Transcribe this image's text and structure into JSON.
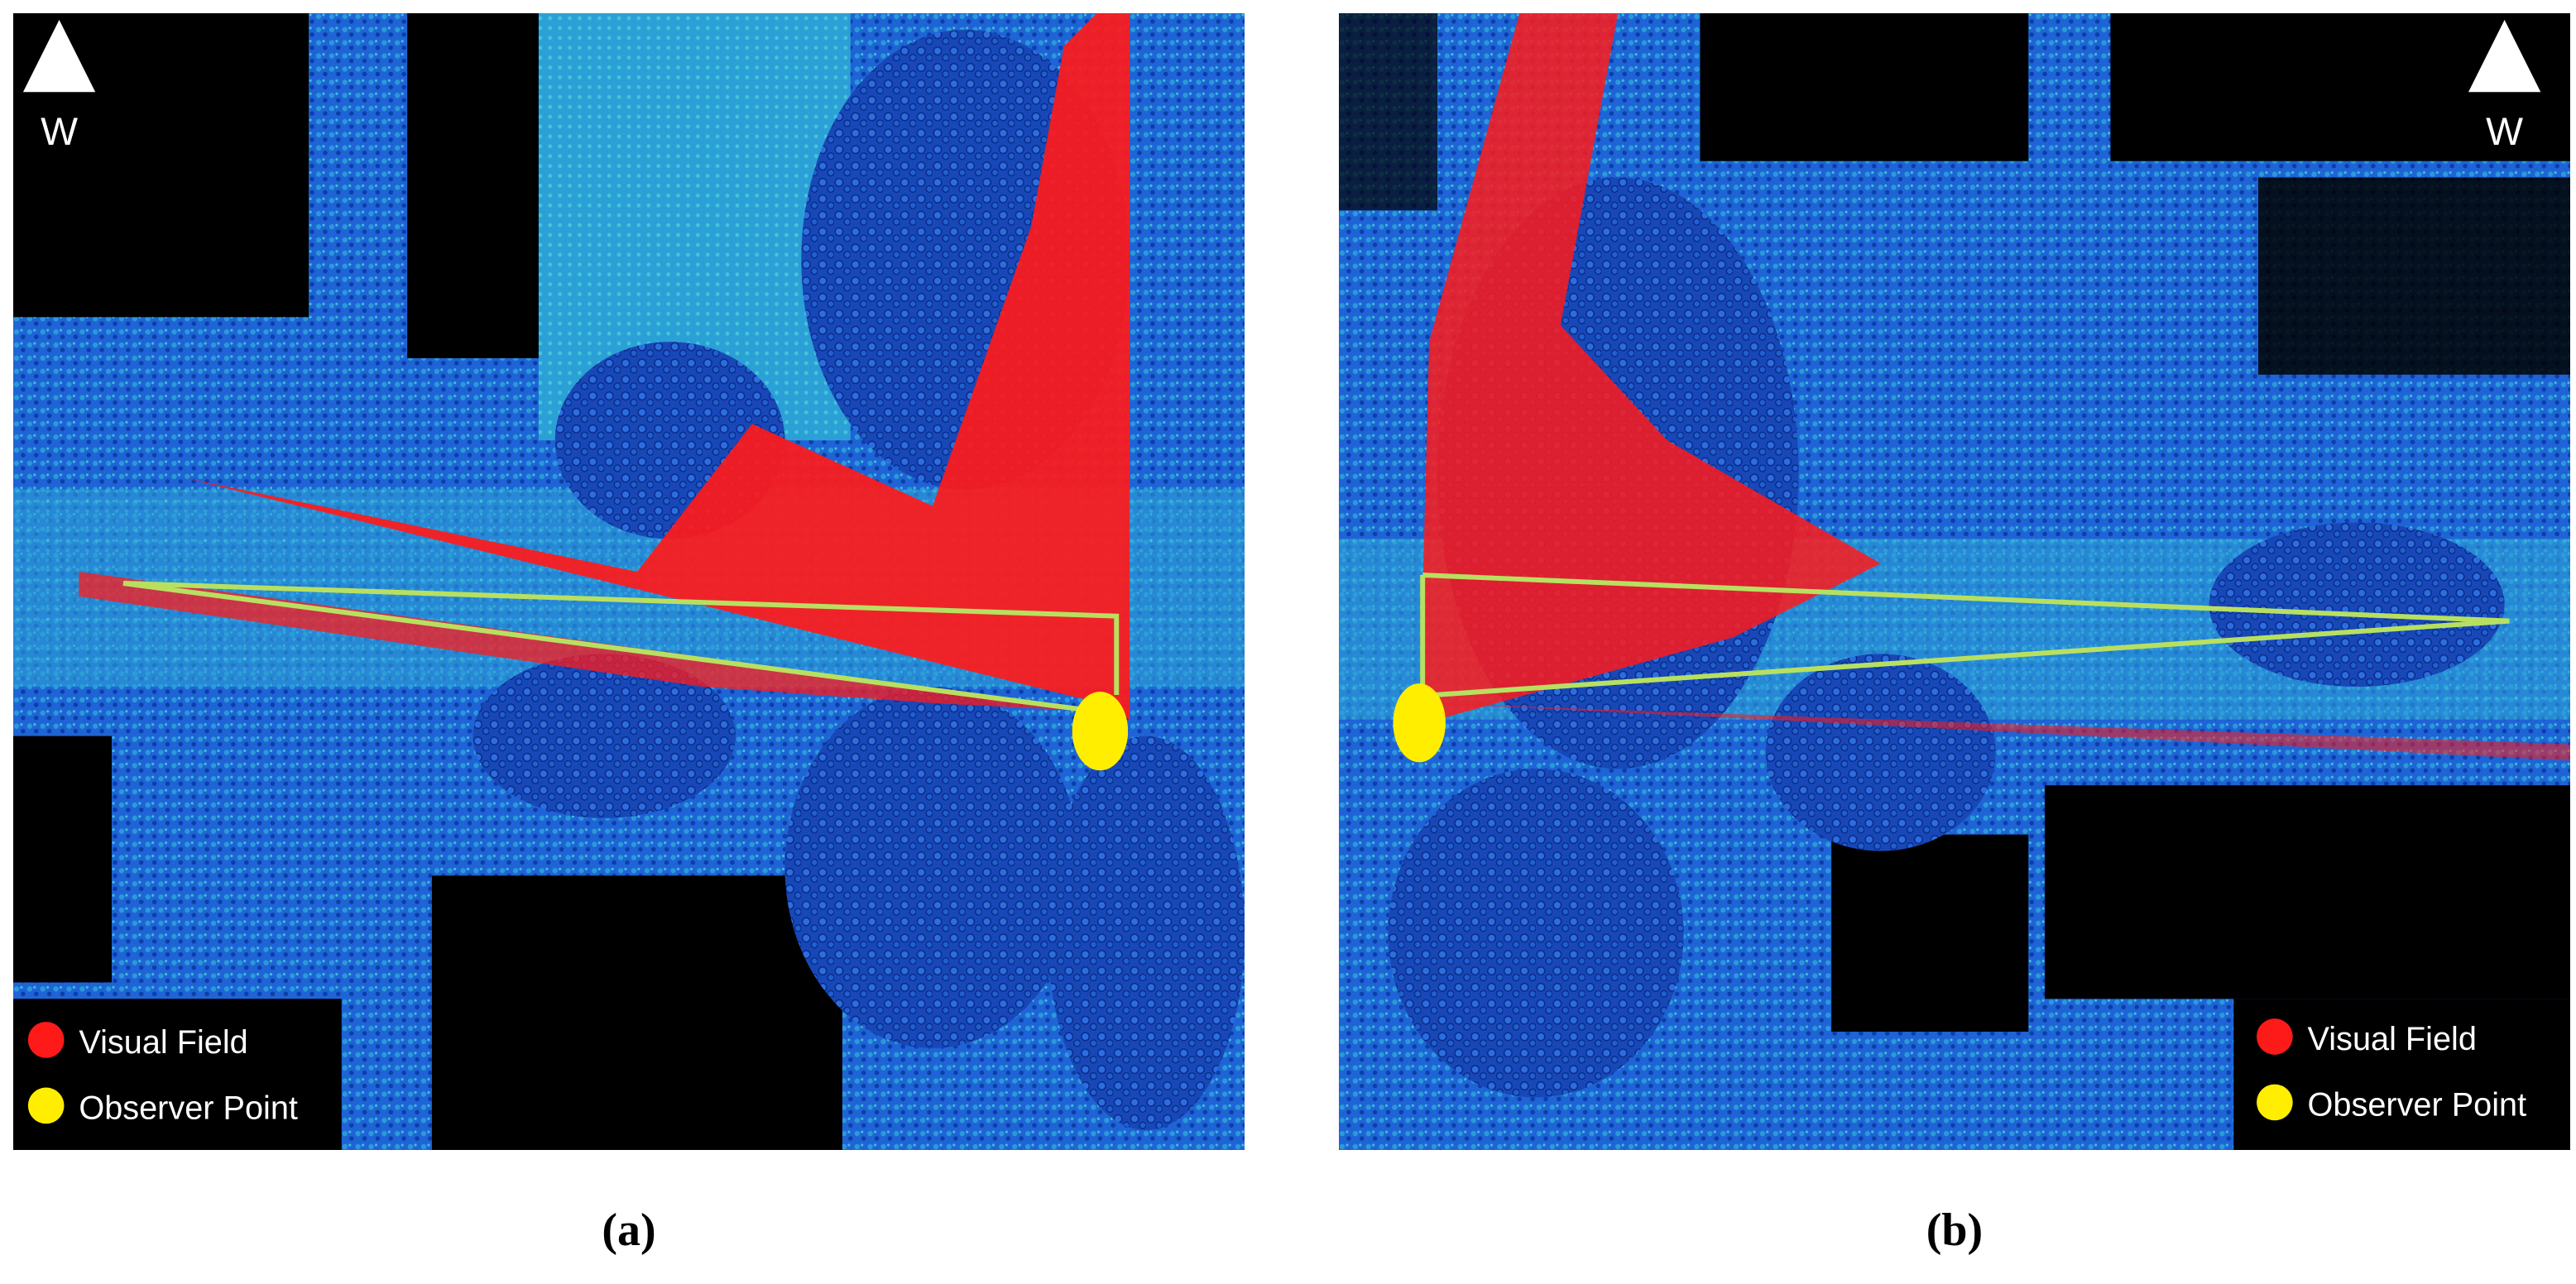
{
  "panels": [
    {
      "compass": "W",
      "legend": [
        "Visual Field",
        "Observer Point"
      ],
      "caption": "(a)"
    },
    {
      "compass": "W",
      "legend": [
        "Visual Field",
        "Observer Point"
      ],
      "caption": "(b)"
    }
  ]
}
